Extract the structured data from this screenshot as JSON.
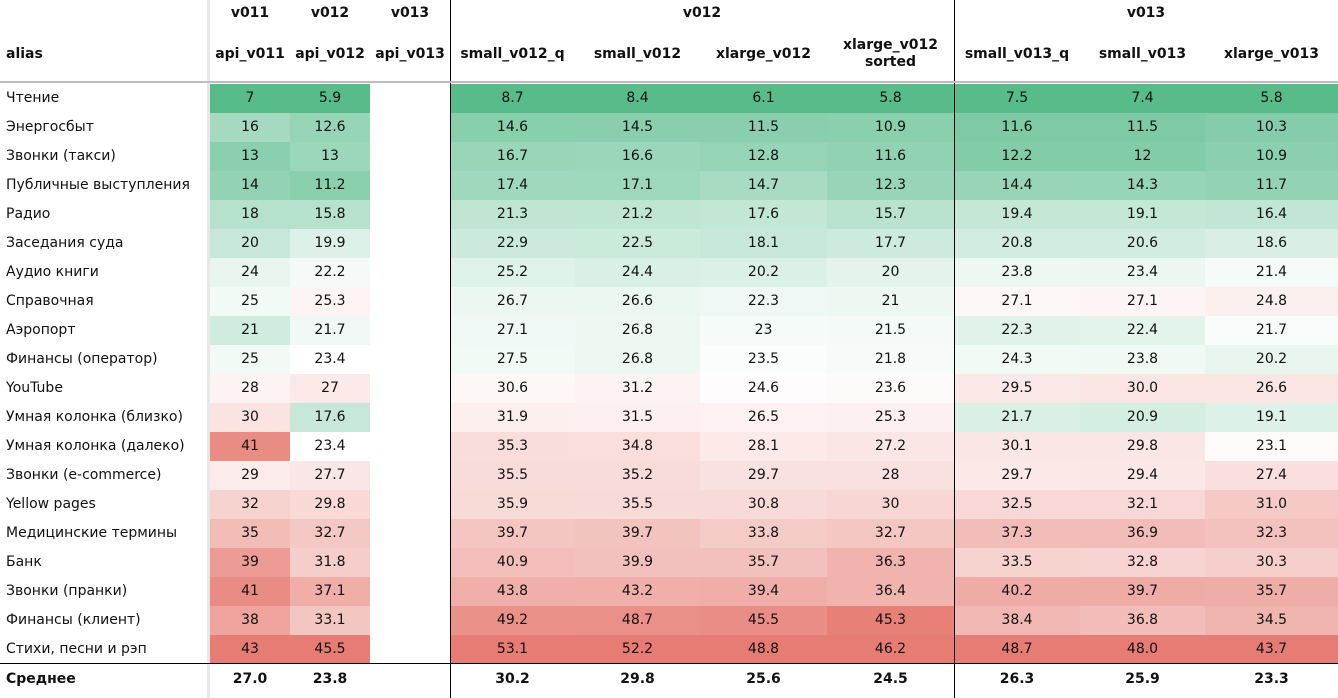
{
  "top_headers": {
    "api_v011": "v011",
    "api_v012": "v012",
    "api_v013": "v013",
    "group_v012": "v012",
    "group_v013": "v013"
  },
  "colors": {
    "good": "#57bb8a",
    "mid": "#ffffff",
    "bad": "#e67c73",
    "stripe": "#e8e8e8"
  },
  "chart_data": {
    "type": "table",
    "row_header": "alias",
    "columns": [
      "api_v011",
      "api_v012",
      "api_v013",
      "small_v012_q",
      "small_v012",
      "xlarge_v012",
      "xlarge_v012 sorted",
      "small_v013_q",
      "small_v013",
      "xlarge_v013"
    ],
    "rows": [
      {
        "alias": "Чтение",
        "values": [
          "7",
          "5.9",
          "",
          "8.7",
          "8.4",
          "6.1",
          "5.8",
          "7.5",
          "7.4",
          "5.8"
        ]
      },
      {
        "alias": "Энергосбыт",
        "values": [
          "16",
          "12.6",
          "",
          "14.6",
          "14.5",
          "11.5",
          "10.9",
          "11.6",
          "11.5",
          "10.3"
        ]
      },
      {
        "alias": "Звонки (такси)",
        "values": [
          "13",
          "13",
          "",
          "16.7",
          "16.6",
          "12.8",
          "11.6",
          "12.2",
          "12",
          "10.9"
        ]
      },
      {
        "alias": "Публичные выступления",
        "values": [
          "14",
          "11.2",
          "",
          "17.4",
          "17.1",
          "14.7",
          "12.3",
          "14.4",
          "14.3",
          "11.7"
        ]
      },
      {
        "alias": "Радио",
        "values": [
          "18",
          "15.8",
          "",
          "21.3",
          "21.2",
          "17.6",
          "15.7",
          "19.4",
          "19.1",
          "16.4"
        ]
      },
      {
        "alias": "Заседания суда",
        "values": [
          "20",
          "19.9",
          "",
          "22.9",
          "22.5",
          "18.1",
          "17.7",
          "20.8",
          "20.6",
          "18.6"
        ]
      },
      {
        "alias": "Аудио книги",
        "values": [
          "24",
          "22.2",
          "",
          "25.2",
          "24.4",
          "20.2",
          "20",
          "23.8",
          "23.4",
          "21.4"
        ]
      },
      {
        "alias": "Справочная",
        "values": [
          "25",
          "25.3",
          "",
          "26.7",
          "26.6",
          "22.3",
          "21",
          "27.1",
          "27.1",
          "24.8"
        ]
      },
      {
        "alias": "Аэропорт",
        "values": [
          "21",
          "21.7",
          "",
          "27.1",
          "26.8",
          "23",
          "21.5",
          "22.3",
          "22.4",
          "21.7"
        ]
      },
      {
        "alias": "Финансы (оператор)",
        "values": [
          "25",
          "23.4",
          "",
          "27.5",
          "26.8",
          "23.5",
          "21.8",
          "24.3",
          "23.8",
          "20.2"
        ]
      },
      {
        "alias": "YouTube",
        "values": [
          "28",
          "27",
          "",
          "30.6",
          "31.2",
          "24.6",
          "23.6",
          "29.5",
          "30.0",
          "26.6"
        ]
      },
      {
        "alias": "Умная колонка (близко)",
        "values": [
          "30",
          "17.6",
          "",
          "31.9",
          "31.5",
          "26.5",
          "25.3",
          "21.7",
          "20.9",
          "19.1"
        ]
      },
      {
        "alias": "Умная колонка (далеко)",
        "values": [
          "41",
          "23.4",
          "",
          "35.3",
          "34.8",
          "28.1",
          "27.2",
          "30.1",
          "29.8",
          "23.1"
        ]
      },
      {
        "alias": "Звонки (e-commerce)",
        "values": [
          "29",
          "27.7",
          "",
          "35.5",
          "35.2",
          "29.7",
          "28",
          "29.7",
          "29.4",
          "27.4"
        ]
      },
      {
        "alias": "Yellow pages",
        "values": [
          "32",
          "29.8",
          "",
          "35.9",
          "35.5",
          "30.8",
          "30",
          "32.5",
          "32.1",
          "31.0"
        ]
      },
      {
        "alias": "Медицинские термины",
        "values": [
          "35",
          "32.7",
          "",
          "39.7",
          "39.7",
          "33.8",
          "32.7",
          "37.3",
          "36.9",
          "32.3"
        ]
      },
      {
        "alias": "Банк",
        "values": [
          "39",
          "31.8",
          "",
          "40.9",
          "39.9",
          "35.7",
          "36.3",
          "33.5",
          "32.8",
          "30.3"
        ]
      },
      {
        "alias": "Звонки (пранки)",
        "values": [
          "41",
          "37.1",
          "",
          "43.8",
          "43.2",
          "39.4",
          "36.4",
          "40.2",
          "39.7",
          "35.7"
        ]
      },
      {
        "alias": "Финансы (клиент)",
        "values": [
          "38",
          "33.1",
          "",
          "49.2",
          "48.7",
          "45.5",
          "45.3",
          "38.4",
          "36.8",
          "34.5"
        ]
      },
      {
        "alias": "Стихи, песни и рэп",
        "values": [
          "43",
          "45.5",
          "",
          "53.1",
          "52.2",
          "48.8",
          "46.2",
          "48.7",
          "48.0",
          "43.7"
        ]
      }
    ],
    "footer": {
      "alias": "Среднее",
      "values": [
        "27.0",
        "23.8",
        "",
        "30.2",
        "29.8",
        "25.6",
        "24.5",
        "26.3",
        "25.9",
        "23.3"
      ]
    }
  }
}
